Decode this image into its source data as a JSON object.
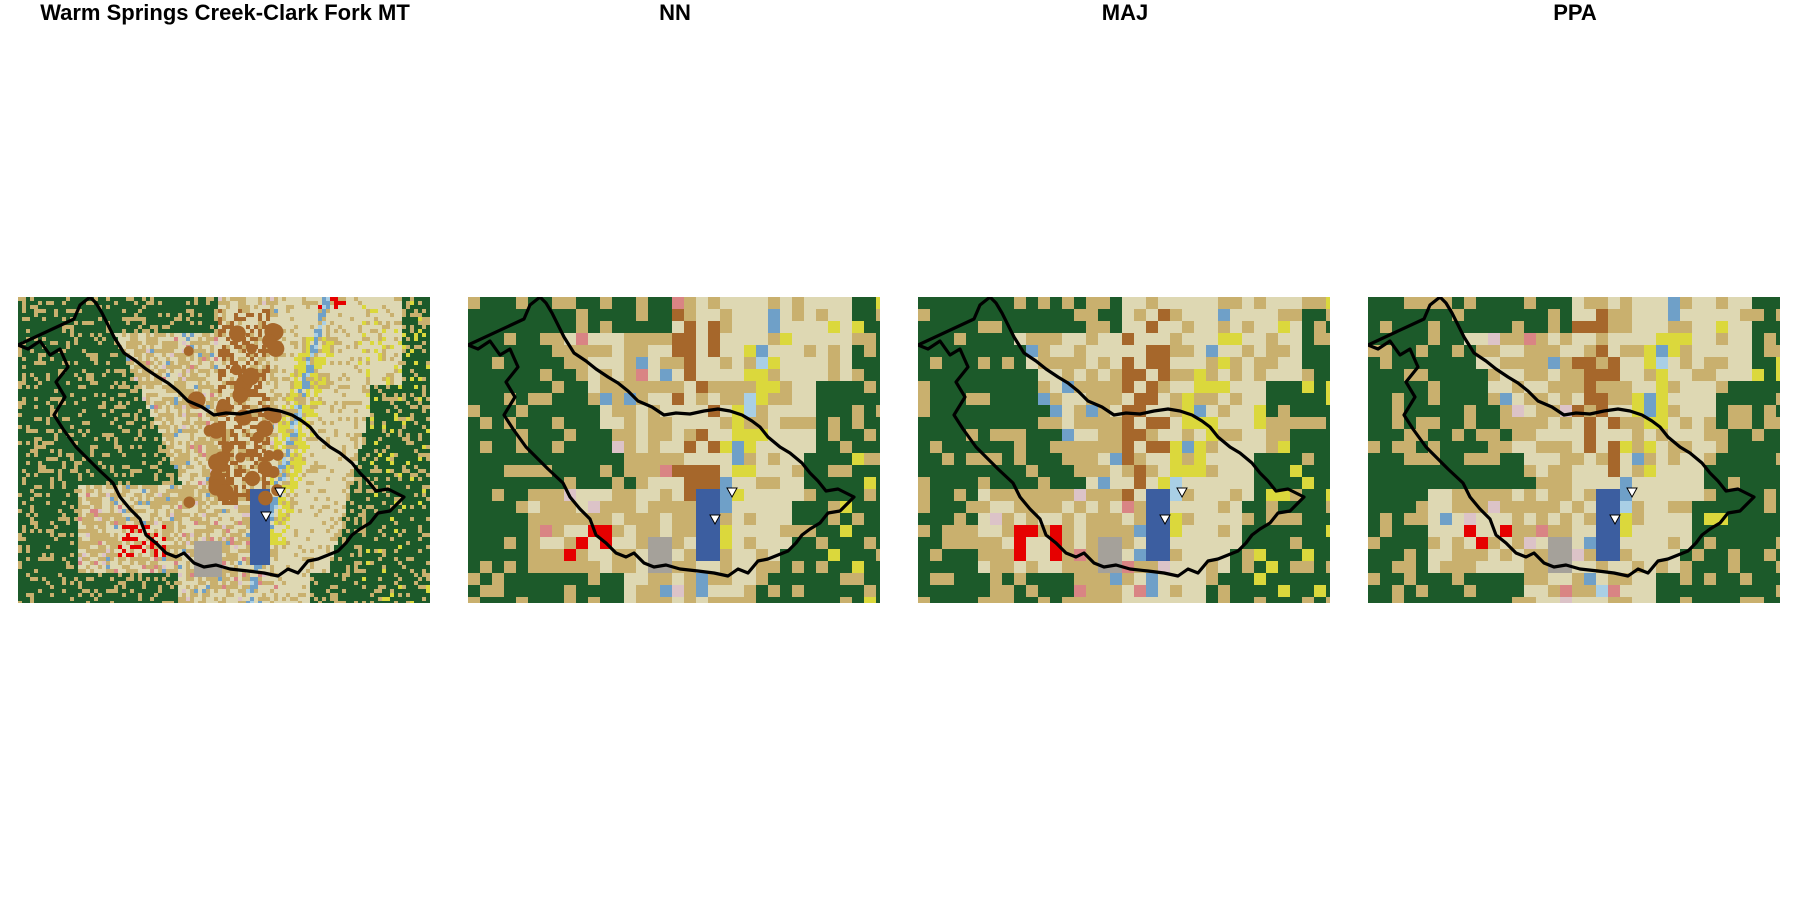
{
  "figure": {
    "panels": [
      {
        "id": "original",
        "title": "Warm Springs Creek-Clark Fork  MT",
        "resolution": "fine"
      },
      {
        "id": "nn",
        "title": "NN",
        "resolution": "coarse"
      },
      {
        "id": "maj",
        "title": "MAJ",
        "resolution": "coarse"
      },
      {
        "id": "ppa",
        "title": "PPA",
        "resolution": "coarse"
      }
    ]
  },
  "legend_colors": {
    "evergreen-forest": "#1c5a2a",
    "shrub-scrub": "#c9b06e",
    "grassland": "#ded8b3",
    "pasture": "#dbd83c",
    "cultivated-crops": "#a6672b",
    "woody-wetlands": "#6fa0c8",
    "herbaceous-wetlands": "#3c5ea0",
    "developed": "#e60000",
    "developed-open": "#d98484",
    "barren": "#a5a19a",
    "water": "#a9cfe5",
    "pink-class": "#dcc3c8"
  },
  "markers": {
    "symbol": "downward-triangle",
    "fill": "#ffffff",
    "stroke": "#000000"
  }
}
